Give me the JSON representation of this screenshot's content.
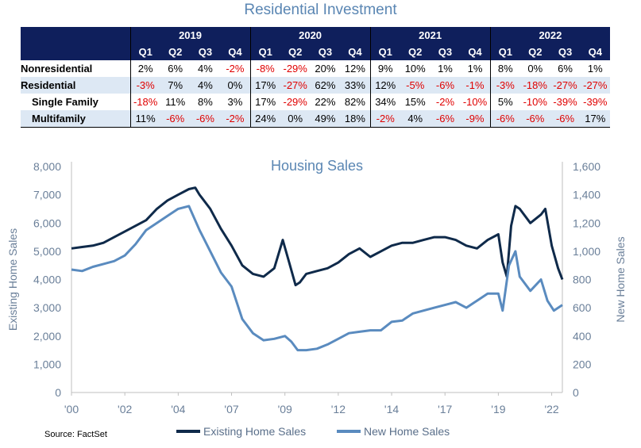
{
  "table": {
    "title": "Residential Investment",
    "years": [
      "2019",
      "2020",
      "2021",
      "2022"
    ],
    "quarters": [
      "Q1",
      "Q2",
      "Q3",
      "Q4"
    ],
    "rows": [
      {
        "label": "Nonresidential",
        "indent": false,
        "values": [
          "2%",
          "6%",
          "4%",
          "-2%",
          "-8%",
          "-29%",
          "20%",
          "12%",
          "9%",
          "10%",
          "1%",
          "1%",
          "8%",
          "0%",
          "6%",
          "1%"
        ]
      },
      {
        "label": "Residential",
        "indent": false,
        "values": [
          "-3%",
          "7%",
          "4%",
          "0%",
          "17%",
          "-27%",
          "62%",
          "33%",
          "12%",
          "-5%",
          "-6%",
          "-1%",
          "-3%",
          "-18%",
          "-27%",
          "-27%"
        ]
      },
      {
        "label": "Single Family",
        "indent": true,
        "values": [
          "-18%",
          "11%",
          "8%",
          "3%",
          "17%",
          "-29%",
          "22%",
          "82%",
          "34%",
          "15%",
          "-2%",
          "-10%",
          "5%",
          "-10%",
          "-39%",
          "-39%"
        ]
      },
      {
        "label": "Multifamily",
        "indent": true,
        "values": [
          "11%",
          "-6%",
          "-6%",
          "-2%",
          "24%",
          "0%",
          "49%",
          "18%",
          "-2%",
          "4%",
          "-6%",
          "-9%",
          "-6%",
          "-6%",
          "-6%",
          "17%"
        ]
      }
    ]
  },
  "chart_data": {
    "type": "line",
    "title": "Housing Sales",
    "ylabel": "Existing Home Sales",
    "y2label": "New Home Sales",
    "ylim": [
      0,
      8000
    ],
    "y2lim": [
      0,
      1600
    ],
    "yticks": [
      "0",
      "1,000",
      "2,000",
      "3,000",
      "4,000",
      "5,000",
      "6,000",
      "7,000",
      "8,000"
    ],
    "y2ticks": [
      "0",
      "200",
      "400",
      "600",
      "800",
      "1,000",
      "1,200",
      "1,400",
      "1,600"
    ],
    "xlim": [
      2000,
      2023
    ],
    "xticks": [
      {
        "x": 2000,
        "label": "'00"
      },
      {
        "x": 2002.5,
        "label": "'02"
      },
      {
        "x": 2005,
        "label": "'04"
      },
      {
        "x": 2007.5,
        "label": "'07"
      },
      {
        "x": 2010,
        "label": "'09"
      },
      {
        "x": 2012.5,
        "label": "'12"
      },
      {
        "x": 2015,
        "label": "'14"
      },
      {
        "x": 2017.5,
        "label": "'17"
      },
      {
        "x": 2020,
        "label": "'19"
      },
      {
        "x": 2022.5,
        "label": "'22"
      }
    ],
    "legend_position": "bottom",
    "series": [
      {
        "name": "Existing Home Sales",
        "axis": "left",
        "color": "#0f2a4a",
        "points": [
          [
            2000,
            5100
          ],
          [
            2000.5,
            5150
          ],
          [
            2001,
            5200
          ],
          [
            2001.5,
            5300
          ],
          [
            2002,
            5500
          ],
          [
            2002.5,
            5700
          ],
          [
            2003,
            5900
          ],
          [
            2003.5,
            6100
          ],
          [
            2004,
            6500
          ],
          [
            2004.5,
            6800
          ],
          [
            2005,
            7000
          ],
          [
            2005.5,
            7200
          ],
          [
            2005.8,
            7250
          ],
          [
            2006,
            7000
          ],
          [
            2006.5,
            6500
          ],
          [
            2007,
            5800
          ],
          [
            2007.5,
            5200
          ],
          [
            2008,
            4500
          ],
          [
            2008.5,
            4200
          ],
          [
            2009,
            4100
          ],
          [
            2009.5,
            4400
          ],
          [
            2009.9,
            5400
          ],
          [
            2010.2,
            4600
          ],
          [
            2010.5,
            3800
          ],
          [
            2010.7,
            3900
          ],
          [
            2011,
            4200
          ],
          [
            2011.5,
            4300
          ],
          [
            2012,
            4400
          ],
          [
            2012.5,
            4600
          ],
          [
            2013,
            4900
          ],
          [
            2013.5,
            5100
          ],
          [
            2014,
            4800
          ],
          [
            2014.5,
            5000
          ],
          [
            2015,
            5200
          ],
          [
            2015.5,
            5300
          ],
          [
            2016,
            5300
          ],
          [
            2016.5,
            5400
          ],
          [
            2017,
            5500
          ],
          [
            2017.5,
            5500
          ],
          [
            2018,
            5400
          ],
          [
            2018.5,
            5200
          ],
          [
            2019,
            5100
          ],
          [
            2019.5,
            5400
          ],
          [
            2020,
            5600
          ],
          [
            2020.2,
            4600
          ],
          [
            2020.4,
            4100
          ],
          [
            2020.6,
            5900
          ],
          [
            2020.8,
            6600
          ],
          [
            2021,
            6500
          ],
          [
            2021.5,
            6000
          ],
          [
            2022,
            6300
          ],
          [
            2022.2,
            6500
          ],
          [
            2022.5,
            5200
          ],
          [
            2022.8,
            4400
          ],
          [
            2023,
            4000
          ]
        ]
      },
      {
        "name": "New Home Sales",
        "axis": "right",
        "color": "#5a8bbf",
        "points": [
          [
            2000,
            870
          ],
          [
            2000.5,
            860
          ],
          [
            2001,
            890
          ],
          [
            2001.5,
            910
          ],
          [
            2002,
            930
          ],
          [
            2002.5,
            970
          ],
          [
            2003,
            1050
          ],
          [
            2003.5,
            1150
          ],
          [
            2004,
            1200
          ],
          [
            2004.5,
            1250
          ],
          [
            2005,
            1300
          ],
          [
            2005.5,
            1320
          ],
          [
            2006,
            1150
          ],
          [
            2006.5,
            1000
          ],
          [
            2007,
            850
          ],
          [
            2007.5,
            750
          ],
          [
            2008,
            520
          ],
          [
            2008.5,
            420
          ],
          [
            2009,
            370
          ],
          [
            2009.5,
            380
          ],
          [
            2010,
            400
          ],
          [
            2010.3,
            360
          ],
          [
            2010.6,
            300
          ],
          [
            2011,
            300
          ],
          [
            2011.5,
            310
          ],
          [
            2012,
            340
          ],
          [
            2012.5,
            380
          ],
          [
            2013,
            420
          ],
          [
            2013.5,
            430
          ],
          [
            2014,
            440
          ],
          [
            2014.5,
            440
          ],
          [
            2015,
            500
          ],
          [
            2015.5,
            510
          ],
          [
            2016,
            560
          ],
          [
            2016.5,
            580
          ],
          [
            2017,
            600
          ],
          [
            2017.5,
            620
          ],
          [
            2018,
            640
          ],
          [
            2018.5,
            600
          ],
          [
            2019,
            650
          ],
          [
            2019.5,
            700
          ],
          [
            2020,
            700
          ],
          [
            2020.2,
            580
          ],
          [
            2020.5,
            900
          ],
          [
            2020.8,
            1000
          ],
          [
            2021,
            820
          ],
          [
            2021.5,
            720
          ],
          [
            2022,
            800
          ],
          [
            2022.3,
            650
          ],
          [
            2022.6,
            580
          ],
          [
            2023,
            620
          ]
        ]
      }
    ]
  },
  "source": "Source: FactSet"
}
